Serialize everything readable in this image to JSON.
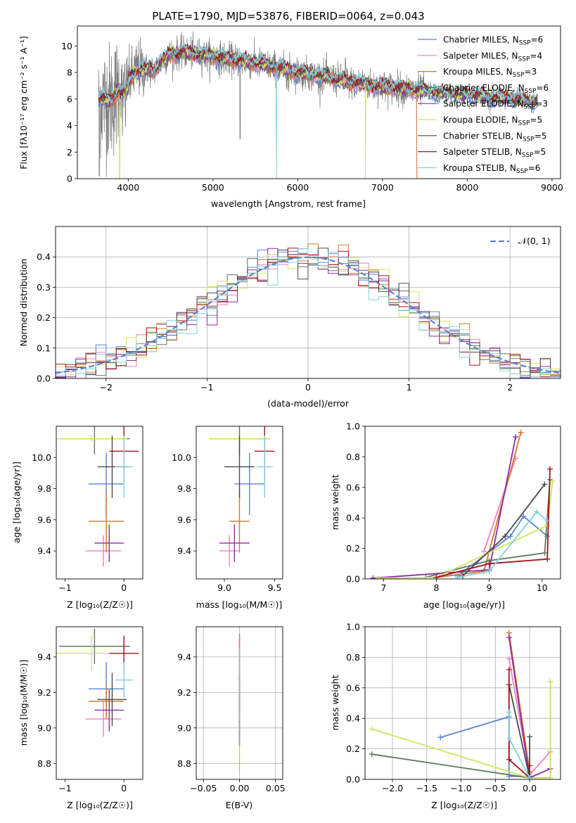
{
  "colors": {
    "Chabrier MILES": "#5b84d6",
    "Salpeter MILES": "#ea84c0",
    "Kroupa MILES": "#d4762b",
    "Chabrier ELODIE": "#5a7b60",
    "Salpeter ELODIE": "#8f2da2",
    "Kroupa ELODIE": "#d2e55c",
    "Chabrier STELIB": "#4a4a4a",
    "Salpeter STELIB": "#a1121c",
    "Kroupa STELIB": "#7ed2dc",
    "data": "#808080"
  },
  "chart_data": [
    {
      "type": "line",
      "title": "PLATE=1790, MJD=53876, FIBERID=0064, z=0.043",
      "xlabel": "wavelength [Angstrom, rest frame]",
      "ylabel": "Flux [fλ10⁻¹⁷ erg cm⁻² s⁻¹ A⁻¹]",
      "xlim": [
        3400,
        9100
      ],
      "ylim": [
        0,
        11.5
      ],
      "xticks": [
        "4000",
        "5000",
        "6000",
        "7000",
        "8000",
        "9000"
      ],
      "yticks": [
        "0",
        "2",
        "4",
        "6",
        "8",
        "10"
      ],
      "legend_position": "top-right",
      "legend": [
        {
          "model": "Chabrier MILES",
          "label": "Chabrier MILES, N",
          "sub": "SSP",
          "suffix": "=6"
        },
        {
          "model": "Salpeter MILES",
          "label": "Salpeter MILES, N",
          "sub": "SSP",
          "suffix": "=4"
        },
        {
          "model": "Kroupa MILES",
          "label": "Kroupa MILES, N",
          "sub": "SSP",
          "suffix": "=3"
        },
        {
          "model": "Chabrier ELODIE",
          "label": "Chabrier ELODIE, N",
          "sub": "SSP",
          "suffix": "=6"
        },
        {
          "model": "Salpeter ELODIE",
          "label": "Salpeter ELODIE, N",
          "sub": "SSP",
          "suffix": "=3"
        },
        {
          "model": "Kroupa ELODIE",
          "label": "Kroupa ELODIE, N",
          "sub": "SSP",
          "suffix": "=5"
        },
        {
          "model": "Chabrier STELIB",
          "label": "Chabrier STELIB, N",
          "sub": "SSP",
          "suffix": "=5"
        },
        {
          "model": "Salpeter STELIB",
          "label": "Salpeter STELIB, N",
          "sub": "SSP",
          "suffix": "=5"
        },
        {
          "model": "Kroupa STELIB",
          "label": "Kroupa STELIB, N",
          "sub": "SSP",
          "suffix": "=6"
        }
      ],
      "continuum": [
        [
          3650,
          6.1
        ],
        [
          3700,
          6.0
        ],
        [
          3800,
          5.8
        ],
        [
          3900,
          6.8
        ],
        [
          4000,
          7.3
        ],
        [
          4100,
          8.2
        ],
        [
          4200,
          8.3
        ],
        [
          4300,
          8.1
        ],
        [
          4400,
          8.9
        ],
        [
          4500,
          9.4
        ],
        [
          4700,
          9.5
        ],
        [
          4900,
          9.3
        ],
        [
          5100,
          9.1
        ],
        [
          5300,
          8.9
        ],
        [
          5500,
          8.7
        ],
        [
          5800,
          8.3
        ],
        [
          6000,
          8.0
        ],
        [
          6300,
          7.7
        ],
        [
          6600,
          7.3
        ],
        [
          6900,
          7.0
        ],
        [
          7200,
          6.8
        ],
        [
          7500,
          6.6
        ],
        [
          7800,
          6.4
        ],
        [
          8200,
          6.2
        ],
        [
          8500,
          6.0
        ],
        [
          8830,
          5.8
        ]
      ]
    },
    {
      "type": "histogram",
      "xlabel": "(data-model)/error",
      "ylabel": "Normed distribution",
      "xlim": [
        -2.5,
        2.5
      ],
      "ylim": [
        0,
        0.5
      ],
      "xticks": [
        "−2",
        "−1",
        "0",
        "1",
        "2"
      ],
      "yticks": [
        "0.0",
        "0.1",
        "0.2",
        "0.3",
        "0.4"
      ],
      "grid": true,
      "legend_position": "top-right",
      "legend": [
        {
          "label": "𝒩(0, 1)",
          "style": "dashed",
          "color": "#5b84d6"
        }
      ],
      "bin_width": 0.1
    },
    {
      "type": "errorbar",
      "xlabel": "Z [log₁₀(Z/Z☉)]",
      "ylabel": "age  [log₁₀(age/yr)]",
      "xlim": [
        -1.15,
        0.32
      ],
      "ylim": [
        9.22,
        10.2
      ],
      "xticks": [
        "−1",
        "0"
      ],
      "yticks": [
        "9.4",
        "9.6",
        "9.8",
        "10.0"
      ],
      "points": [
        {
          "model": "Chabrier MILES",
          "x": -0.3,
          "xerr": 0.3,
          "y": 9.83,
          "yerr": 0.2
        },
        {
          "model": "Salpeter MILES",
          "x": -0.35,
          "xerr": 0.3,
          "y": 9.4,
          "yerr": 0.1
        },
        {
          "model": "Kroupa MILES",
          "x": -0.3,
          "xerr": 0.3,
          "y": 9.59,
          "yerr": 0.2
        },
        {
          "model": "Chabrier ELODIE",
          "x": -0.5,
          "xerr": 0.6,
          "y": 10.12,
          "yerr": 0.1
        },
        {
          "model": "Salpeter ELODIE",
          "x": -0.25,
          "xerr": 0.25,
          "y": 9.45,
          "yerr": 0.12
        },
        {
          "model": "Kroupa ELODIE",
          "x": -0.55,
          "xerr": 0.6,
          "y": 10.12,
          "yerr": 0.02
        },
        {
          "model": "Chabrier STELIB",
          "x": -0.2,
          "xerr": 0.25,
          "y": 9.94,
          "yerr": 0.2
        },
        {
          "model": "Salpeter STELIB",
          "x": 0,
          "xerr": 0.25,
          "y": 10.04,
          "yerr": 0.2
        },
        {
          "model": "Kroupa STELIB",
          "x": 0,
          "xerr": 0.15,
          "y": 9.94,
          "yerr": 0.2
        }
      ]
    },
    {
      "type": "errorbar",
      "xlabel": "mass [log₁₀(M/M☉)]",
      "ylabel": "",
      "xlim": [
        8.72,
        9.58
      ],
      "ylim": [
        9.22,
        10.2
      ],
      "xticks": [
        "9.0",
        "9.5"
      ],
      "yticks": [
        "9.4",
        "9.6",
        "9.8",
        "10.0"
      ],
      "points": [
        {
          "model": "Chabrier MILES",
          "x": 9.25,
          "xerr": 0.15,
          "y": 9.83,
          "yerr": 0.2
        },
        {
          "model": "Salpeter MILES",
          "x": 9.05,
          "xerr": 0.1,
          "y": 9.4,
          "yerr": 0.1
        },
        {
          "model": "Kroupa MILES",
          "x": 9.15,
          "xerr": 0.1,
          "y": 9.59,
          "yerr": 0.2
        },
        {
          "model": "Chabrier ELODIE",
          "x": 9.15,
          "xerr": 0.3,
          "y": 10.12,
          "yerr": 0.1
        },
        {
          "model": "Salpeter ELODIE",
          "x": 9.1,
          "xerr": 0.15,
          "y": 9.45,
          "yerr": 0.12
        },
        {
          "model": "Kroupa ELODIE",
          "x": 9.15,
          "xerr": 0.3,
          "y": 10.12,
          "yerr": 0.02
        },
        {
          "model": "Chabrier STELIB",
          "x": 9.15,
          "xerr": 0.15,
          "y": 9.94,
          "yerr": 0.2
        },
        {
          "model": "Salpeter STELIB",
          "x": 9.4,
          "xerr": 0.1,
          "y": 10.04,
          "yerr": 0.2
        },
        {
          "model": "Kroupa STELIB",
          "x": 9.4,
          "xerr": 0.08,
          "y": 9.94,
          "yerr": 0.2
        }
      ]
    },
    {
      "type": "line",
      "xlabel": "age  [log₁₀(age/yr)]",
      "ylabel": "mass weight",
      "xlim": [
        6.65,
        10.35
      ],
      "ylim": [
        0,
        1
      ],
      "xticks": [
        "7",
        "8",
        "9",
        "10"
      ],
      "yticks": [
        "0.0",
        "0.2",
        "0.4",
        "0.6",
        "0.8",
        "1.0"
      ],
      "series": [
        {
          "model": "Chabrier MILES",
          "x": [
            8.4,
            9.4,
            9.65,
            10.1
          ],
          "y": [
            0.02,
            0.28,
            0.41,
            0.28
          ]
        },
        {
          "model": "Salpeter MILES",
          "x": [
            8.9,
            9.5
          ],
          "y": [
            0.18,
            0.79
          ]
        },
        {
          "model": "Kroupa MILES",
          "x": [
            8.0,
            8.9,
            9.6
          ],
          "y": [
            0.01,
            0.05,
            0.96
          ]
        },
        {
          "model": "Chabrier ELODIE",
          "x": [
            7.8,
            9.0,
            10.05,
            10.15
          ],
          "y": [
            0.01,
            0.12,
            0.17,
            0.65
          ]
        },
        {
          "model": "Salpeter ELODIE",
          "x": [
            6.8,
            9.0,
            9.5
          ],
          "y": [
            0.005,
            0.06,
            0.93
          ]
        },
        {
          "model": "Kroupa ELODIE",
          "x": [
            6.9,
            8.0,
            10.1,
            10.2
          ],
          "y": [
            0.005,
            0.01,
            0.35,
            0.64
          ]
        },
        {
          "model": "Chabrier STELIB",
          "x": [
            8.5,
            9.3,
            10.05
          ],
          "y": [
            0.02,
            0.28,
            0.62
          ]
        },
        {
          "model": "Salpeter STELIB",
          "x": [
            8.0,
            9.0,
            10.1,
            10.15
          ],
          "y": [
            0.01,
            0.1,
            0.13,
            0.72
          ]
        },
        {
          "model": "Kroupa STELIB",
          "x": [
            8.4,
            9.0,
            9.9,
            10.1
          ],
          "y": [
            0.01,
            0.05,
            0.44,
            0.38
          ]
        }
      ]
    },
    {
      "type": "errorbar",
      "xlabel": "Z [log₁₀(Z/Z☉)]",
      "ylabel": "mass [log₁₀(M/M☉)]",
      "xlim": [
        -1.15,
        0.32
      ],
      "ylim": [
        8.71,
        9.57
      ],
      "xticks": [
        "−1",
        "0"
      ],
      "yticks": [
        "8.8",
        "9.0",
        "9.2",
        "9.4"
      ],
      "points": [
        {
          "model": "Chabrier MILES",
          "x": -0.3,
          "xerr": 0.3,
          "y": 9.22,
          "yerr": 0.15
        },
        {
          "model": "Salpeter MILES",
          "x": -0.35,
          "xerr": 0.3,
          "y": 9.05,
          "yerr": 0.1
        },
        {
          "model": "Kroupa MILES",
          "x": -0.3,
          "xerr": 0.3,
          "y": 9.15,
          "yerr": 0.1
        },
        {
          "model": "Chabrier ELODIE",
          "x": -0.5,
          "xerr": 0.6,
          "y": 9.46,
          "yerr": 0.1
        },
        {
          "model": "Salpeter ELODIE",
          "x": -0.25,
          "xerr": 0.25,
          "y": 9.1,
          "yerr": 0.12
        },
        {
          "model": "Kroupa ELODIE",
          "x": -0.55,
          "xerr": 0.6,
          "y": 9.42,
          "yerr": 0.1
        },
        {
          "model": "Chabrier STELIB",
          "x": -0.2,
          "xerr": 0.25,
          "y": 9.16,
          "yerr": 0.15
        },
        {
          "model": "Salpeter STELIB",
          "x": 0,
          "xerr": 0.25,
          "y": 9.42,
          "yerr": 0.1
        },
        {
          "model": "Kroupa STELIB",
          "x": 0,
          "xerr": 0.15,
          "y": 9.27,
          "yerr": 0.1
        }
      ]
    },
    {
      "type": "errorbar",
      "xlabel": "E(B-V)",
      "ylabel": "",
      "xlim": [
        -0.06,
        0.06
      ],
      "ylim": [
        8.71,
        9.57
      ],
      "xticks": [
        "−0.05",
        "0.00",
        "0.05"
      ],
      "yticks": [
        "8.8",
        "9.0",
        "9.2",
        "9.4"
      ],
      "points": [
        {
          "model": "Kroupa ELODIE",
          "x": 0,
          "xerr": 0,
          "y": 9.0,
          "yerr": 0.25
        },
        {
          "model": "Chabrier STELIB",
          "x": 0,
          "xerr": 0,
          "y": 9.1,
          "yerr": 0.2
        },
        {
          "model": "Salpeter STELIB",
          "x": 0,
          "xerr": 0,
          "y": 9.3,
          "yerr": 0.23
        },
        {
          "model": "Kroupa STELIB",
          "x": 0,
          "xerr": 0,
          "y": 9.25,
          "yerr": 0.2
        }
      ]
    },
    {
      "type": "line",
      "xlabel": "Z [log₁₀(Z/Z☉)]",
      "ylabel": "mass weight",
      "xlim": [
        -2.4,
        0.45
      ],
      "ylim": [
        0,
        1
      ],
      "xticks": [
        "−2.0",
        "−1.5",
        "−1.0",
        "−0.5",
        "0.0"
      ],
      "yticks": [
        "0.0",
        "0.2",
        "0.4",
        "0.6",
        "0.8",
        "1.0"
      ],
      "grid": true,
      "series": [
        {
          "model": "Chabrier MILES",
          "x": [
            -1.3,
            -0.3,
            -0.3,
            0.0
          ],
          "y": [
            0.275,
            0.41,
            0.02,
            0.02
          ]
        },
        {
          "model": "Salpeter MILES",
          "x": [
            -0.3,
            0.0,
            0.3
          ],
          "y": [
            0.79,
            0.03,
            0.18
          ]
        },
        {
          "model": "Kroupa MILES",
          "x": [
            -0.3,
            0.0
          ],
          "y": [
            0.96,
            0.05
          ]
        },
        {
          "model": "Chabrier ELODIE",
          "x": [
            -2.3,
            0.0,
            0.3,
            0.3
          ],
          "y": [
            0.165,
            0.01,
            0.01,
            0.64
          ]
        },
        {
          "model": "Salpeter ELODIE",
          "x": [
            -0.3,
            0.0,
            0.3
          ],
          "y": [
            0.93,
            0.01,
            0.07
          ]
        },
        {
          "model": "Kroupa ELODIE",
          "x": [
            -2.3,
            0.0,
            0.3,
            0.3
          ],
          "y": [
            0.33,
            0.01,
            0.01,
            0.64
          ]
        },
        {
          "model": "Chabrier STELIB",
          "x": [
            -0.3,
            0.0,
            0.0
          ],
          "y": [
            0.62,
            0.01,
            0.28
          ]
        },
        {
          "model": "Salpeter STELIB",
          "x": [
            -0.3,
            -0.3,
            0.0,
            0.0
          ],
          "y": [
            0.72,
            0.13,
            0.01,
            0.09
          ]
        },
        {
          "model": "Kroupa STELIB",
          "x": [
            -0.3,
            -0.3,
            0.0
          ],
          "y": [
            0.44,
            0.27,
            0.01
          ]
        }
      ]
    }
  ]
}
